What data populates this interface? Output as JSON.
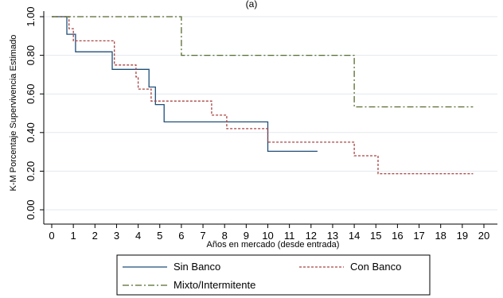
{
  "chart_data": {
    "type": "line",
    "title": "(a)",
    "xlabel": "Años en mercado (desde entrada)",
    "ylabel": "K-M Porcentaje Supervivencia Estimado",
    "xlim": [
      0,
      20
    ],
    "ylim": [
      0,
      1
    ],
    "x_ticks": [
      "0",
      "1",
      "2",
      "3",
      "4",
      "5",
      "6",
      "7",
      "8",
      "9",
      "10",
      "11",
      "12",
      "13",
      "14",
      "15",
      "16",
      "17",
      "18",
      "19",
      "20"
    ],
    "y_ticks": [
      "0.00",
      "0.20",
      "0.40",
      "0.60",
      "0.80",
      "1.00"
    ],
    "grid": "horizontal",
    "legend_position": "bottom",
    "series": [
      {
        "name": "Sin Banco",
        "color": "#1f4e79",
        "style": "solid",
        "points": [
          [
            0,
            1.0
          ],
          [
            0.7,
            1.0
          ],
          [
            0.7,
            0.909
          ],
          [
            1.1,
            0.909
          ],
          [
            1.1,
            0.818
          ],
          [
            2.8,
            0.818
          ],
          [
            2.8,
            0.727
          ],
          [
            4.5,
            0.727
          ],
          [
            4.5,
            0.636
          ],
          [
            4.8,
            0.636
          ],
          [
            4.8,
            0.545
          ],
          [
            5.2,
            0.545
          ],
          [
            5.2,
            0.455
          ],
          [
            10.0,
            0.455
          ],
          [
            10.0,
            0.303
          ],
          [
            12.3,
            0.303
          ]
        ]
      },
      {
        "name": "Con Banco",
        "color": "#a94442",
        "style": "dash",
        "points": [
          [
            0,
            1.0
          ],
          [
            0.8,
            1.0
          ],
          [
            0.8,
            0.938
          ],
          [
            1.0,
            0.938
          ],
          [
            1.0,
            0.875
          ],
          [
            2.9,
            0.875
          ],
          [
            2.9,
            0.75
          ],
          [
            3.9,
            0.75
          ],
          [
            3.9,
            0.688
          ],
          [
            4.0,
            0.688
          ],
          [
            4.0,
            0.625
          ],
          [
            4.6,
            0.625
          ],
          [
            4.6,
            0.563
          ],
          [
            7.4,
            0.563
          ],
          [
            7.4,
            0.49
          ],
          [
            8.1,
            0.49
          ],
          [
            8.1,
            0.42
          ],
          [
            10.0,
            0.42
          ],
          [
            10.0,
            0.35
          ],
          [
            14.0,
            0.35
          ],
          [
            14.0,
            0.28
          ],
          [
            15.1,
            0.28
          ],
          [
            15.1,
            0.187
          ],
          [
            19.5,
            0.187
          ]
        ]
      },
      {
        "name": "Mixto/Intermitente",
        "color": "#556b2f",
        "style": "dashdot",
        "points": [
          [
            0,
            1.0
          ],
          [
            6.0,
            1.0
          ],
          [
            6.0,
            0.8
          ],
          [
            14.0,
            0.8
          ],
          [
            14.0,
            0.533
          ],
          [
            19.5,
            0.533
          ]
        ]
      }
    ]
  }
}
